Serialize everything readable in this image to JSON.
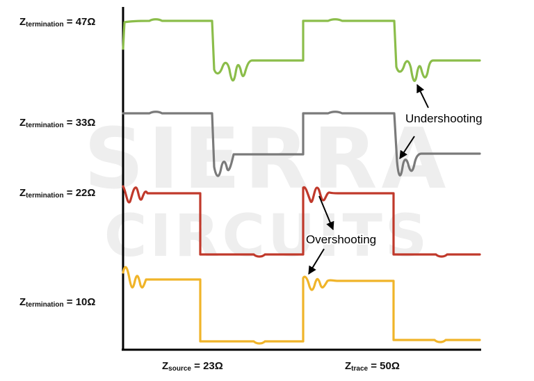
{
  "watermark": {
    "line1": "SIERRA",
    "line2": "CIRCUITS"
  },
  "signals": [
    {
      "z_sym": "Z",
      "sub": "termination",
      "value": " = 47Ω",
      "color": "#8bbd4a"
    },
    {
      "z_sym": "Z",
      "sub": "termination",
      "value": " = 33Ω",
      "color": "#7a7a7a"
    },
    {
      "z_sym": "Z",
      "sub": "termination",
      "value": " = 22Ω",
      "color": "#c0392b"
    },
    {
      "z_sym": "Z",
      "sub": "termination",
      "value": " = 10Ω",
      "color": "#f0b429"
    }
  ],
  "bottom_labels": {
    "source": {
      "z_sym": "Z",
      "sub": "source",
      "value": " = 23Ω"
    },
    "trace": {
      "z_sym": "Z",
      "sub": "trace",
      "value": " = 50Ω"
    }
  },
  "annotations": {
    "undershoot": "Undershooting",
    "overshoot": "Overshooting"
  },
  "colors": {
    "axis": "#000000",
    "arrow": "#000000"
  }
}
